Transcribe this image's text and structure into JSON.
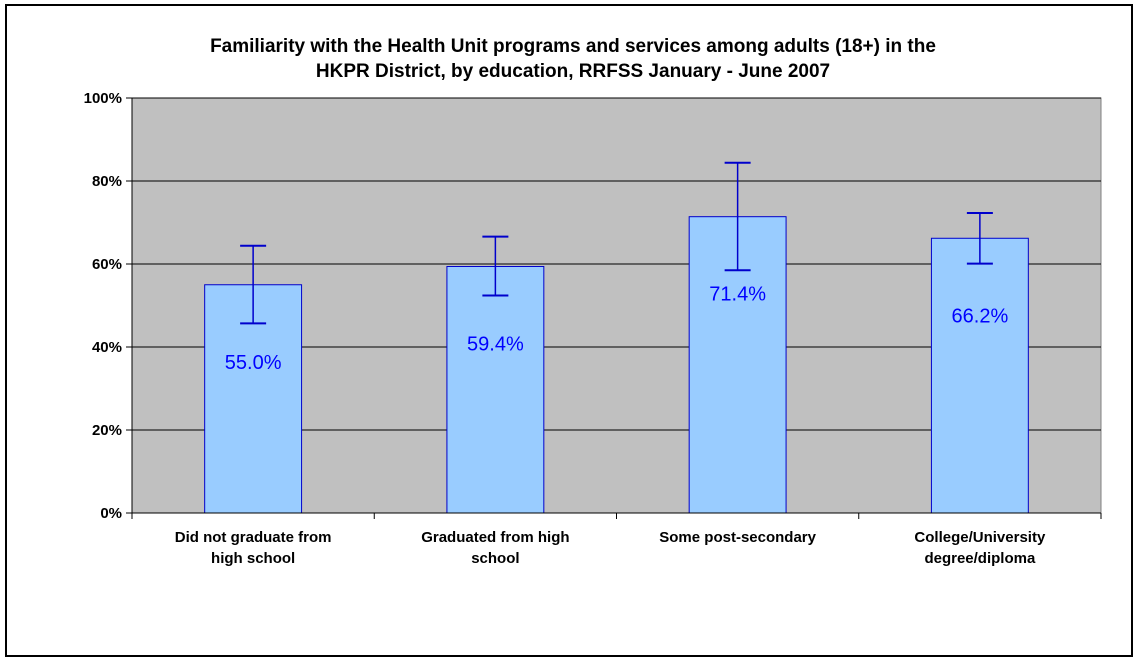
{
  "chart_data": {
    "type": "bar",
    "title_lines": [
      "Familiarity with the Health Unit programs and services among adults (18+) in the",
      "HKPR District, by education, RRFSS January - June 2007"
    ],
    "categories": [
      [
        "Did not graduate from",
        "high school"
      ],
      [
        "Graduated from high",
        "school"
      ],
      [
        "Some post-secondary"
      ],
      [
        "College/University",
        "degree/diploma"
      ]
    ],
    "values": [
      55.0,
      59.4,
      71.4,
      66.2
    ],
    "value_labels": [
      "55.0%",
      "59.4%",
      "71.4%",
      "66.2%"
    ],
    "error_low": [
      45.7,
      52.4,
      58.5,
      60.1
    ],
    "error_high": [
      64.4,
      66.6,
      84.4,
      72.3
    ],
    "ylim": [
      0,
      100
    ],
    "yticks": [
      0,
      20,
      40,
      60,
      80,
      100
    ],
    "ytick_labels": [
      "0%",
      "20%",
      "40%",
      "60%",
      "80%",
      "100%"
    ],
    "grid": true,
    "colors": {
      "plot_background": "#c0c0c0",
      "bar_fill": "#99ccff",
      "bar_stroke": "#0000cc",
      "error_bar": "#0000cc",
      "data_label": "#0000ff",
      "gridline": "#000000"
    }
  }
}
